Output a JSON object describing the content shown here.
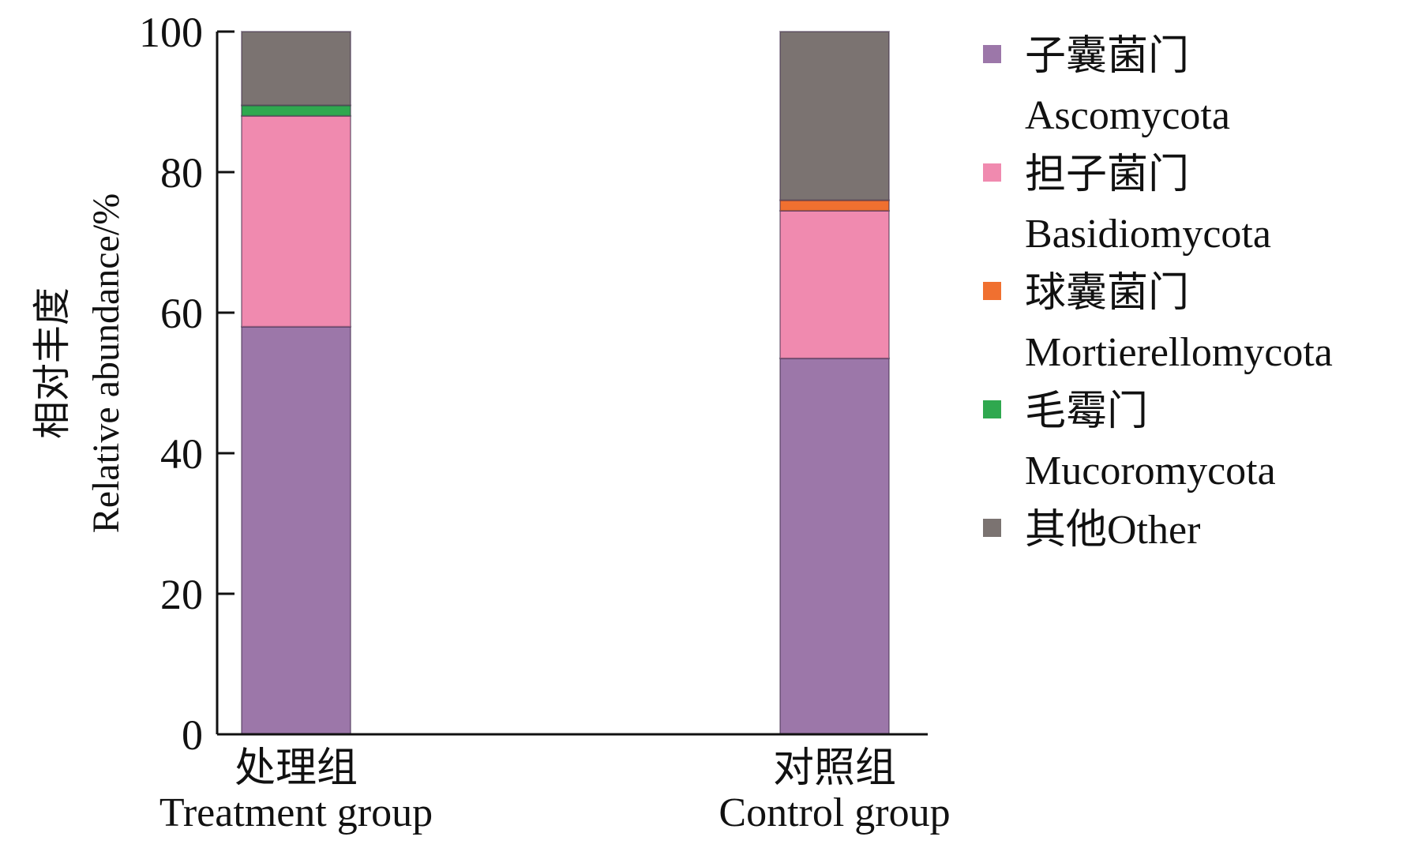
{
  "chart_data": {
    "type": "bar",
    "stacked": true,
    "ylabel": [
      "相对丰度",
      "Relative abundance/%"
    ],
    "ylim": [
      0,
      100
    ],
    "yticks": [
      0,
      20,
      40,
      60,
      80,
      100
    ],
    "grid": false,
    "legend_position": "right",
    "categories": [
      [
        "处理组",
        "Treatment group"
      ],
      [
        "对照组",
        "Control group"
      ]
    ],
    "series": [
      {
        "name": [
          "子囊菌门",
          "Ascomycota"
        ],
        "color": "#9c77a9",
        "values": [
          58.0,
          53.5
        ]
      },
      {
        "name": [
          "担子菌门",
          "Basidiomycota"
        ],
        "color": "#f08aaf",
        "values": [
          30.0,
          21.0
        ]
      },
      {
        "name": [
          "球囊菌门",
          "Mortierellomycota"
        ],
        "color": "#f07030",
        "values": [
          0.0,
          1.5
        ]
      },
      {
        "name": [
          "毛霉门",
          "Mucoromycota"
        ],
        "color": "#2fa84f",
        "values": [
          1.5,
          0.0
        ]
      },
      {
        "name": [
          "其他Other"
        ],
        "color": "#7b7371",
        "values": [
          10.5,
          24.0
        ]
      }
    ]
  }
}
